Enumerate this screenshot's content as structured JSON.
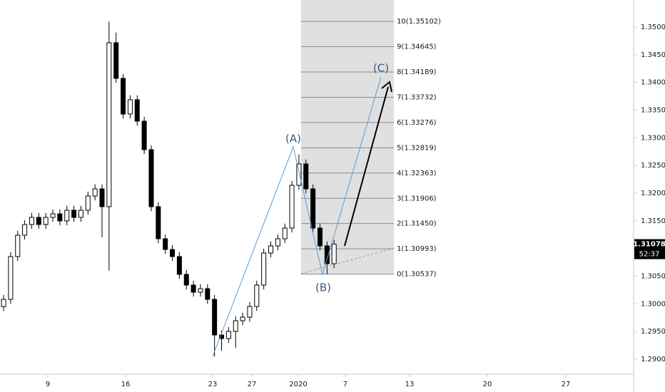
{
  "chart_data": {
    "type": "candlestick",
    "x": [
      0.23,
      0.68,
      1.13,
      1.58,
      2.03,
      2.48,
      2.93,
      3.38,
      3.83,
      4.28,
      4.73,
      5.18,
      5.63,
      6.08,
      6.53,
      6.98,
      7.43,
      7.88,
      8.33,
      8.78,
      9.23,
      9.68,
      10.13,
      10.58,
      11.03,
      11.48,
      11.93,
      12.38,
      12.83,
      13.28,
      13.73,
      14.18,
      14.63,
      15.08,
      15.53,
      15.98,
      16.43,
      16.88,
      17.33,
      17.78,
      18.23,
      18.68,
      19.13,
      19.58,
      20.03,
      20.48,
      20.93,
      21.38
    ],
    "open": [
      1.2995,
      1.30081,
      1.30854,
      1.3124,
      1.31433,
      1.31562,
      1.31433,
      1.31562,
      1.31626,
      1.31498,
      1.31691,
      1.31562,
      1.31691,
      1.31948,
      1.32077,
      1.31755,
      1.34717,
      1.34073,
      1.33429,
      1.33687,
      1.333,
      1.32785,
      1.31755,
      1.31176,
      1.30982,
      1.30854,
      1.30532,
      1.30339,
      1.3021,
      1.30274,
      1.30081,
      1.29437,
      1.29373,
      1.29502,
      1.29695,
      1.29759,
      1.29952,
      1.30339,
      1.30918,
      1.31047,
      1.31176,
      1.31369,
      1.32141,
      1.32528,
      1.32077,
      1.31369,
      1.31047,
      1.30725
    ],
    "high": [
      1.30161,
      1.30934,
      1.3132,
      1.31513,
      1.31642,
      1.31642,
      1.31642,
      1.31706,
      1.31706,
      1.31771,
      1.31771,
      1.31771,
      1.32028,
      1.32157,
      1.32157,
      1.351,
      1.349,
      1.34153,
      1.33767,
      1.33767,
      1.3338,
      1.32865,
      1.31835,
      1.31256,
      1.31062,
      1.30934,
      1.30612,
      1.30419,
      1.30354,
      1.30354,
      1.30161,
      1.29517,
      1.29582,
      1.29775,
      1.29839,
      1.30032,
      1.30419,
      1.30998,
      1.31127,
      1.31256,
      1.31449,
      1.32221,
      1.327,
      1.32608,
      1.32157,
      1.31449,
      1.31127,
      1.31158
    ],
    "low": [
      1.2987,
      1.30001,
      1.30774,
      1.3116,
      1.31353,
      1.31353,
      1.31353,
      1.31482,
      1.31418,
      1.31418,
      1.31482,
      1.31482,
      1.31611,
      1.31868,
      1.312,
      1.306,
      1.33993,
      1.33349,
      1.33349,
      1.3322,
      1.32705,
      1.31675,
      1.31096,
      1.30902,
      1.30774,
      1.30452,
      1.30259,
      1.3013,
      1.3013,
      1.30001,
      1.2905,
      1.2915,
      1.29293,
      1.292,
      1.29615,
      1.29679,
      1.29872,
      1.30259,
      1.30838,
      1.30967,
      1.31096,
      1.31289,
      1.32061,
      1.31997,
      1.31289,
      1.30967,
      1.30537,
      1.30645
    ],
    "close": [
      1.30081,
      1.30854,
      1.3124,
      1.31433,
      1.31562,
      1.31433,
      1.31562,
      1.31626,
      1.31498,
      1.31691,
      1.31562,
      1.31691,
      1.31948,
      1.32077,
      1.31755,
      1.34717,
      1.34073,
      1.33429,
      1.33687,
      1.333,
      1.32785,
      1.31755,
      1.31176,
      1.30982,
      1.30854,
      1.30532,
      1.30339,
      1.3021,
      1.30274,
      1.30081,
      1.29437,
      1.29373,
      1.29502,
      1.29695,
      1.29759,
      1.29952,
      1.30339,
      1.30918,
      1.31047,
      1.31176,
      1.31369,
      1.32141,
      1.32528,
      1.32077,
      1.31369,
      1.31047,
      1.30725,
      1.31078
    ],
    "up_color": "#ffffff",
    "down_color": "#000000",
    "xlim": [
      0,
      40.55
    ],
    "ylim": [
      1.28729,
      1.35489
    ],
    "xticks": [
      {
        "value": 3.06,
        "label": "9"
      },
      {
        "value": 8.04,
        "label": "16"
      },
      {
        "value": 13.61,
        "label": "23"
      },
      {
        "value": 16.12,
        "label": "27"
      },
      {
        "value": 19.09,
        "label": "2020"
      },
      {
        "value": 22.1,
        "label": "7"
      },
      {
        "value": 26.21,
        "label": "13"
      },
      {
        "value": 31.19,
        "label": "20"
      },
      {
        "value": 36.21,
        "label": "27"
      }
    ],
    "yticks": [
      {
        "value": 1.29,
        "label": "1.29000"
      },
      {
        "value": 1.295,
        "label": "1.29500"
      },
      {
        "value": 1.3,
        "label": "1.30000"
      },
      {
        "value": 1.305,
        "label": "1.30500"
      },
      {
        "value": 1.31,
        "label": "1.31000"
      },
      {
        "value": 1.315,
        "label": "1.31500"
      },
      {
        "value": 1.32,
        "label": "1.32000"
      },
      {
        "value": 1.325,
        "label": "1.32500"
      },
      {
        "value": 1.33,
        "label": "1.33000"
      },
      {
        "value": 1.335,
        "label": "1.33500"
      },
      {
        "value": 1.34,
        "label": "1.34000"
      },
      {
        "value": 1.345,
        "label": "1.34500"
      },
      {
        "value": 1.35,
        "label": "1.35000"
      }
    ],
    "fib_box": {
      "xlim": [
        19.27,
        25.21
      ],
      "color": "#e0e0e0",
      "levels": [
        {
          "value": 1.30537,
          "label": "0(1.30537)"
        },
        {
          "value": 1.30993,
          "label": "1(1.30993)"
        },
        {
          "value": 1.3145,
          "label": "2(1.31450)"
        },
        {
          "value": 1.31906,
          "label": "3(1.31906)"
        },
        {
          "value": 1.32363,
          "label": "4(1.32363)"
        },
        {
          "value": 1.32819,
          "label": "5(1.32819)"
        },
        {
          "value": 1.33276,
          "label": "6(1.33276)"
        },
        {
          "value": 1.33732,
          "label": "7(1.33732)"
        },
        {
          "value": 1.34189,
          "label": "8(1.34189)"
        },
        {
          "value": 1.34645,
          "label": "9(1.34645)"
        },
        {
          "value": 1.35102,
          "label": "10(1.35102)"
        }
      ]
    },
    "last_price": {
      "value": 1.31078,
      "label": "1.31078"
    },
    "countdown": "52:37",
    "annotations": [
      "(A)",
      "(B)",
      "(C)"
    ]
  }
}
